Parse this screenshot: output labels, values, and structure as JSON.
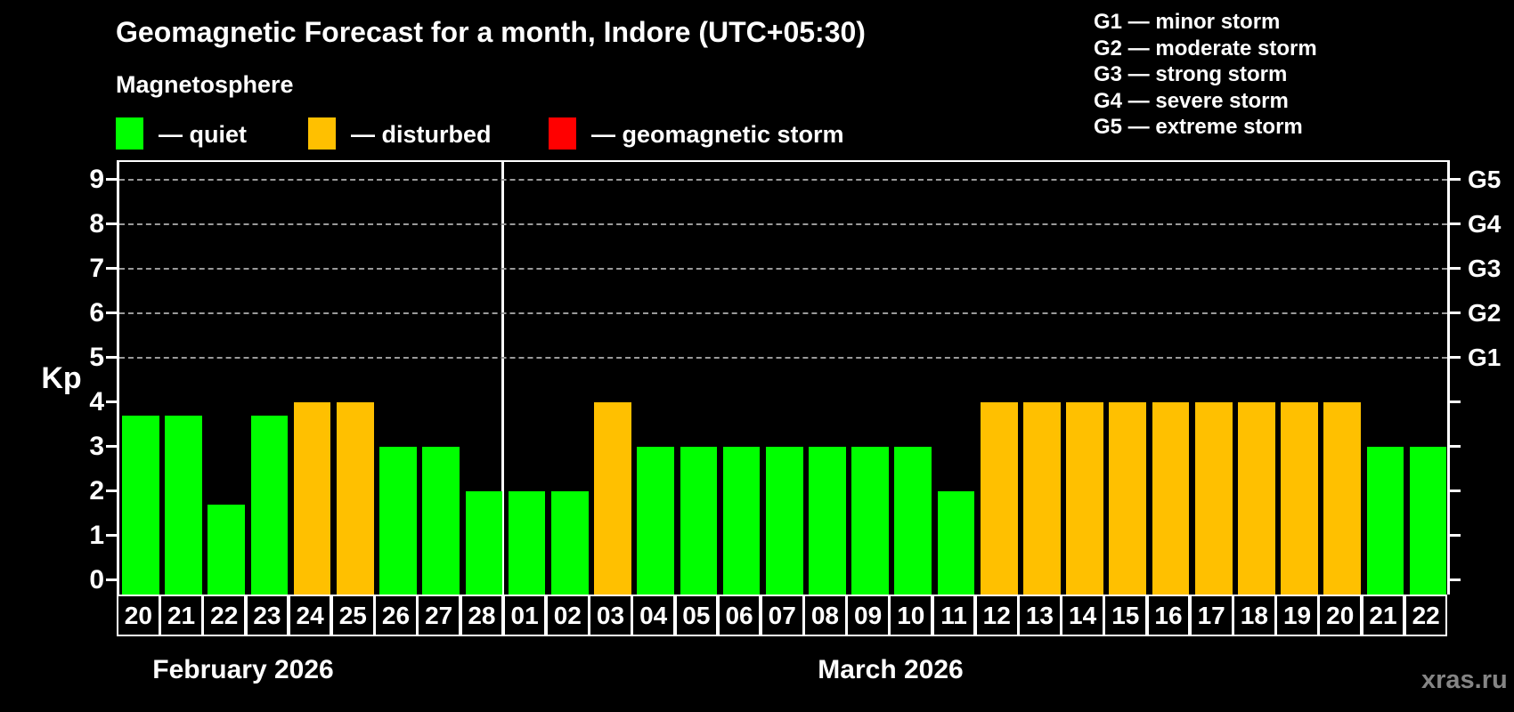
{
  "header": {
    "title": "Geomagnetic Forecast for a month, Indore (UTC+05:30)",
    "subtitle": "Magnetosphere"
  },
  "legend": {
    "items": [
      {
        "key": "quiet",
        "label": "— quiet",
        "color": "#00ff00"
      },
      {
        "key": "disturbed",
        "label": "— disturbed",
        "color": "#ffc000"
      },
      {
        "key": "storm",
        "label": "— geomagnetic storm",
        "color": "#ff0000"
      }
    ]
  },
  "storm_scale_legend": {
    "items": [
      "G1 — minor storm",
      "G2 — moderate storm",
      "G3 — strong storm",
      "G4 — severe storm",
      "G5 — extreme storm"
    ]
  },
  "footer": {
    "watermark": "xras.ru"
  },
  "chart_data": {
    "type": "bar",
    "title": "Geomagnetic Forecast for a month, Indore (UTC+05:30)",
    "ylabel": "Kp",
    "ylim": [
      0,
      9
    ],
    "yticks": [
      0,
      1,
      2,
      3,
      4,
      5,
      6,
      7,
      8,
      9
    ],
    "gridlines_kp": [
      5,
      6,
      7,
      8,
      9
    ],
    "grid": "dashed horizontal lines only at storm levels G1-G5",
    "legend_position": "top",
    "right_axis": [
      {
        "kp": 5,
        "label": "G1"
      },
      {
        "kp": 6,
        "label": "G2"
      },
      {
        "kp": 7,
        "label": "G3"
      },
      {
        "kp": 8,
        "label": "G4"
      },
      {
        "kp": 9,
        "label": "G5"
      }
    ],
    "months": [
      {
        "label": "February 2026",
        "days": 9
      },
      {
        "label": "March 2026",
        "days": 22
      }
    ],
    "bars": [
      {
        "month": "February 2026",
        "day": "20",
        "kp": 3.7,
        "state": "quiet"
      },
      {
        "month": "February 2026",
        "day": "21",
        "kp": 3.7,
        "state": "quiet"
      },
      {
        "month": "February 2026",
        "day": "22",
        "kp": 1.7,
        "state": "quiet"
      },
      {
        "month": "February 2026",
        "day": "23",
        "kp": 3.7,
        "state": "quiet"
      },
      {
        "month": "February 2026",
        "day": "24",
        "kp": 4,
        "state": "disturbed"
      },
      {
        "month": "February 2026",
        "day": "25",
        "kp": 4,
        "state": "disturbed"
      },
      {
        "month": "February 2026",
        "day": "26",
        "kp": 3,
        "state": "quiet"
      },
      {
        "month": "February 2026",
        "day": "27",
        "kp": 3,
        "state": "quiet"
      },
      {
        "month": "February 2026",
        "day": "28",
        "kp": 2,
        "state": "quiet"
      },
      {
        "month": "March 2026",
        "day": "01",
        "kp": 2,
        "state": "quiet"
      },
      {
        "month": "March 2026",
        "day": "02",
        "kp": 2,
        "state": "quiet"
      },
      {
        "month": "March 2026",
        "day": "03",
        "kp": 4,
        "state": "disturbed"
      },
      {
        "month": "March 2026",
        "day": "04",
        "kp": 3,
        "state": "quiet"
      },
      {
        "month": "March 2026",
        "day": "05",
        "kp": 3,
        "state": "quiet"
      },
      {
        "month": "March 2026",
        "day": "06",
        "kp": 3,
        "state": "quiet"
      },
      {
        "month": "March 2026",
        "day": "07",
        "kp": 3,
        "state": "quiet"
      },
      {
        "month": "March 2026",
        "day": "08",
        "kp": 3,
        "state": "quiet"
      },
      {
        "month": "March 2026",
        "day": "09",
        "kp": 3,
        "state": "quiet"
      },
      {
        "month": "March 2026",
        "day": "10",
        "kp": 3,
        "state": "quiet"
      },
      {
        "month": "March 2026",
        "day": "11",
        "kp": 2,
        "state": "quiet"
      },
      {
        "month": "March 2026",
        "day": "12",
        "kp": 4,
        "state": "disturbed"
      },
      {
        "month": "March 2026",
        "day": "13",
        "kp": 4,
        "state": "disturbed"
      },
      {
        "month": "March 2026",
        "day": "14",
        "kp": 4,
        "state": "disturbed"
      },
      {
        "month": "March 2026",
        "day": "15",
        "kp": 4,
        "state": "disturbed"
      },
      {
        "month": "March 2026",
        "day": "16",
        "kp": 4,
        "state": "disturbed"
      },
      {
        "month": "March 2026",
        "day": "17",
        "kp": 4,
        "state": "disturbed"
      },
      {
        "month": "March 2026",
        "day": "18",
        "kp": 4,
        "state": "disturbed"
      },
      {
        "month": "March 2026",
        "day": "19",
        "kp": 4,
        "state": "disturbed"
      },
      {
        "month": "March 2026",
        "day": "20",
        "kp": 4,
        "state": "disturbed"
      },
      {
        "month": "March 2026",
        "day": "21",
        "kp": 3,
        "state": "quiet"
      },
      {
        "month": "March 2026",
        "day": "22",
        "kp": 3,
        "state": "quiet"
      }
    ]
  }
}
